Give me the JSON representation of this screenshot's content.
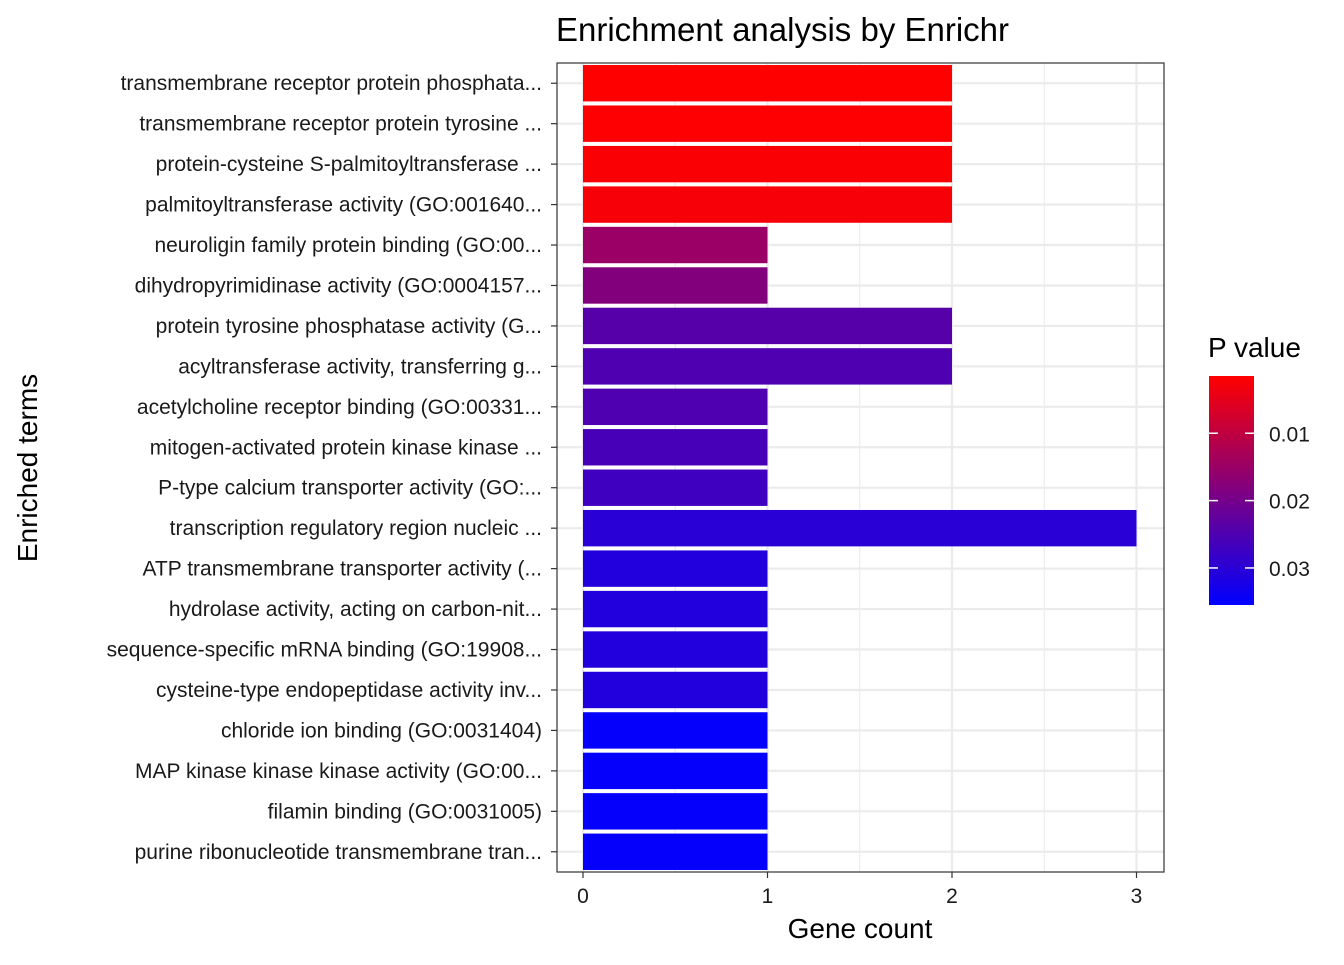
{
  "chart_data": {
    "type": "bar",
    "orientation": "horizontal",
    "title": "Enrichment analysis by Enrichr",
    "xlabel": "Gene count",
    "ylabel": "Enriched terms",
    "xlim": [
      0,
      3
    ],
    "x_ticks": [
      "0",
      "1",
      "2",
      "3"
    ],
    "grid": true,
    "legend": {
      "title": "P value",
      "placement": "right",
      "type": "colorbar",
      "low_color": "#ff0000",
      "high_color": "#0000ff",
      "range": [
        0.0015,
        0.0355
      ],
      "ticks": [
        {
          "value": 0.01,
          "label": "0.01"
        },
        {
          "value": 0.02,
          "label": "0.02"
        },
        {
          "value": 0.03,
          "label": "0.03"
        }
      ]
    },
    "categories": [
      "transmembrane receptor protein phosphata...",
      "transmembrane receptor protein tyrosine ...",
      "protein-cysteine S-palmitoyltransferase ...",
      "palmitoyltransferase activity (GO:001640...",
      "neuroligin family protein binding (GO:00...",
      "dihydropyrimidinase activity (GO:0004157...",
      "protein tyrosine phosphatase activity (G...",
      "acyltransferase activity, transferring g...",
      "acetylcholine receptor binding (GO:00331...",
      "mitogen-activated protein kinase kinase ...",
      "P-type calcium transporter activity (GO:...",
      "transcription regulatory region nucleic ...",
      "ATP transmembrane transporter activity (...",
      "hydrolase activity, acting on carbon-nit...",
      "sequence-specific mRNA binding (GO:19908...",
      "cysteine-type endopeptidase activity inv...",
      "chloride ion binding (GO:0031404)",
      "MAP kinase kinase kinase activity (GO:00...",
      "filamin binding (GO:0031005)",
      "purine ribonucleotide transmembrane tran..."
    ],
    "values": [
      2,
      2,
      2,
      2,
      1,
      1,
      2,
      2,
      1,
      1,
      1,
      3,
      1,
      1,
      1,
      1,
      1,
      1,
      1,
      1
    ],
    "p_values": [
      0.0015,
      0.0016,
      0.0022,
      0.0024,
      0.015,
      0.018,
      0.024,
      0.025,
      0.025,
      0.026,
      0.027,
      0.03,
      0.031,
      0.031,
      0.031,
      0.031,
      0.035,
      0.035,
      0.035,
      0.035
    ]
  }
}
